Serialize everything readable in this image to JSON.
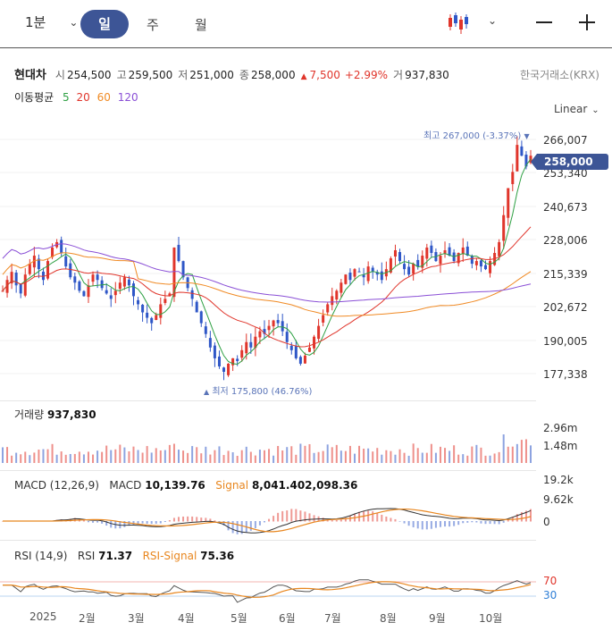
{
  "toolbar": {
    "timeframe": "1분",
    "tabs": [
      "일",
      "주",
      "월"
    ],
    "active_tab": "일"
  },
  "quote": {
    "name": "현대차",
    "open_label": "시",
    "open": "254,500",
    "high_label": "고",
    "high": "259,500",
    "low_label": "저",
    "low": "251,000",
    "close_label": "종",
    "close": "258,000",
    "change_arrow": "▲",
    "change": "7,500",
    "change_pct": "+2.99%",
    "volume_label": "거",
    "volume": "937,830",
    "exchange": "한국거래소(KRX)"
  },
  "ma": {
    "label": "이동평균",
    "periods": [
      {
        "value": "5",
        "color": "#2ea043"
      },
      {
        "value": "20",
        "color": "#e0352b"
      },
      {
        "value": "60",
        "color": "#f08a24"
      },
      {
        "value": "120",
        "color": "#8a4fd6"
      }
    ]
  },
  "scale_mode": "Linear",
  "price_axis": [
    "266,007",
    "253,340",
    "240,673",
    "228,006",
    "215,339",
    "202,672",
    "190,005",
    "177,338"
  ],
  "current_price": "258,000",
  "high_marker": "최고 267,000 (-3.37%)",
  "low_marker": "최저 175,800 (46.76%)",
  "volume_panel": {
    "label": "거래량",
    "value": "937,830",
    "axis": [
      "2.96m",
      "1.48m"
    ]
  },
  "macd_panel": {
    "label": "MACD (12,26,9)",
    "macd_label": "MACD",
    "macd_value": "10,139.76",
    "signal_label": "Signal",
    "signal_value": "8,041.402,098.36",
    "axis": [
      "19.2k",
      "9.62k",
      "0"
    ]
  },
  "rsi_panel": {
    "label": "RSI (14,9)",
    "rsi_label": "RSI",
    "rsi_value": "71.37",
    "signal_label": "RSI-Signal",
    "signal_value": "75.36",
    "axis": [
      "70",
      "30"
    ]
  },
  "months": [
    "2025",
    "2월",
    "3월",
    "4월",
    "5월",
    "6월",
    "7월",
    "8월",
    "9월",
    "10월"
  ],
  "colors": {
    "accent": "#3d5596",
    "up": "#e0352b",
    "down": "#2f57c7"
  },
  "chart_data": {
    "type": "candlestick",
    "title": "현대차",
    "xlabel": "",
    "ylabel": "",
    "ylim": [
      173000,
      270000
    ],
    "close": [
      208000,
      212000,
      215000,
      210000,
      207000,
      214000,
      218000,
      221000,
      216000,
      212000,
      219000,
      224000,
      226000,
      222000,
      217000,
      213000,
      211000,
      208000,
      206000,
      210000,
      214000,
      212000,
      209000,
      207000,
      205000,
      208000,
      211000,
      213000,
      210000,
      206000,
      203000,
      200000,
      198000,
      196000,
      199000,
      203000,
      205000,
      207000,
      224000,
      219000,
      213000,
      209000,
      205000,
      200000,
      196000,
      192000,
      187000,
      183000,
      180000,
      178000,
      181000,
      183000,
      182000,
      186000,
      189000,
      187000,
      191000,
      193000,
      192000,
      195000,
      197000,
      196000,
      193000,
      189000,
      186000,
      183000,
      181000,
      184000,
      187000,
      191000,
      195000,
      199000,
      203000,
      206000,
      208000,
      211000,
      214000,
      212000,
      216000,
      215000,
      213000,
      217000,
      215000,
      214000,
      212000,
      216000,
      220000,
      223000,
      219000,
      216000,
      214000,
      218000,
      217000,
      221000,
      224000,
      222000,
      219000,
      221000,
      223000,
      221000,
      219000,
      222000,
      224000,
      221000,
      218000,
      219000,
      217000,
      216000,
      219000,
      222000,
      226000,
      236000,
      246000,
      252000,
      262000,
      258000,
      254000,
      258000
    ]
  }
}
